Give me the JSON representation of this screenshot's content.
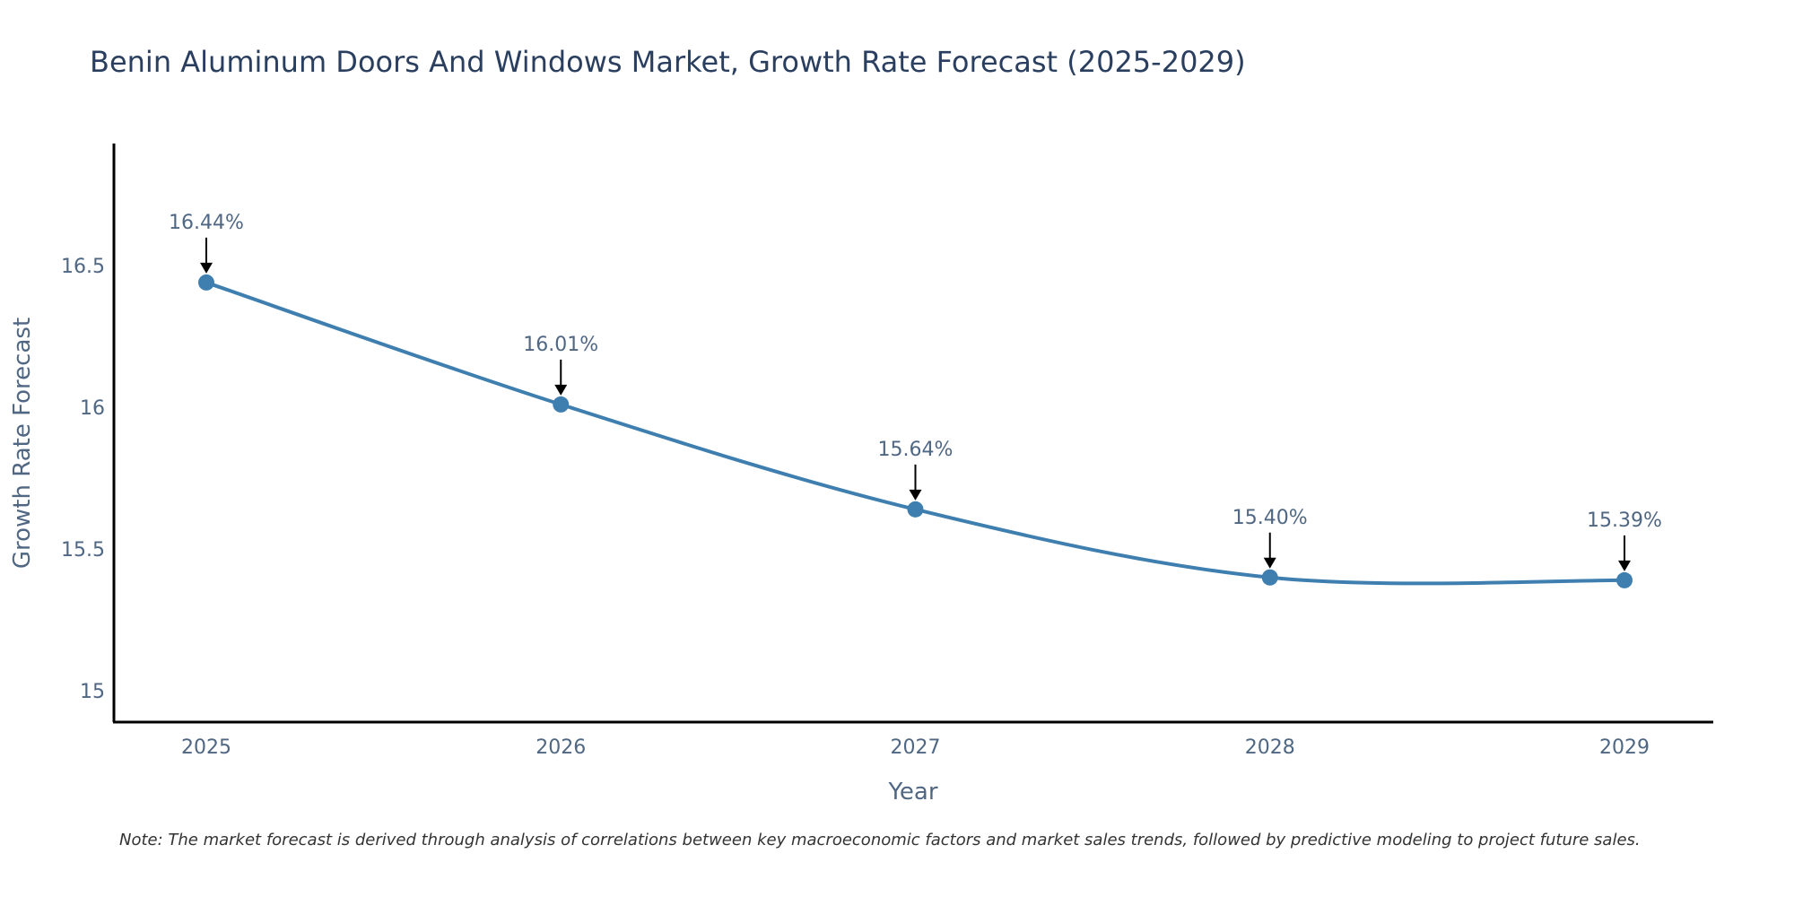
{
  "chart_data": {
    "type": "line",
    "title": "Benin Aluminum Doors And Windows Market, Growth Rate Forecast (2025-2029)",
    "xlabel": "Year",
    "ylabel": "Growth Rate Forecast",
    "categories": [
      "2025",
      "2026",
      "2027",
      "2028",
      "2029"
    ],
    "series": [
      {
        "name": "Growth Rate Forecast",
        "values": [
          16.44,
          16.01,
          15.64,
          15.4,
          15.39
        ]
      }
    ],
    "data_labels": [
      "16.44%",
      "16.01%",
      "15.64%",
      "15.40%",
      "15.39%"
    ],
    "y_ticks": [
      15,
      15.5,
      16,
      16.5
    ],
    "y_tick_labels": [
      "15",
      "15.5",
      "16",
      "16.5"
    ],
    "ylim": [
      14.89,
      16.93
    ],
    "grid": false,
    "line_color": "#3f7fb0",
    "marker_color": "#3f7fb0",
    "note": "Note: The market forecast is derived through analysis of correlations between key macroeconomic factors and market sales trends, followed by predictive modeling to project future sales."
  }
}
